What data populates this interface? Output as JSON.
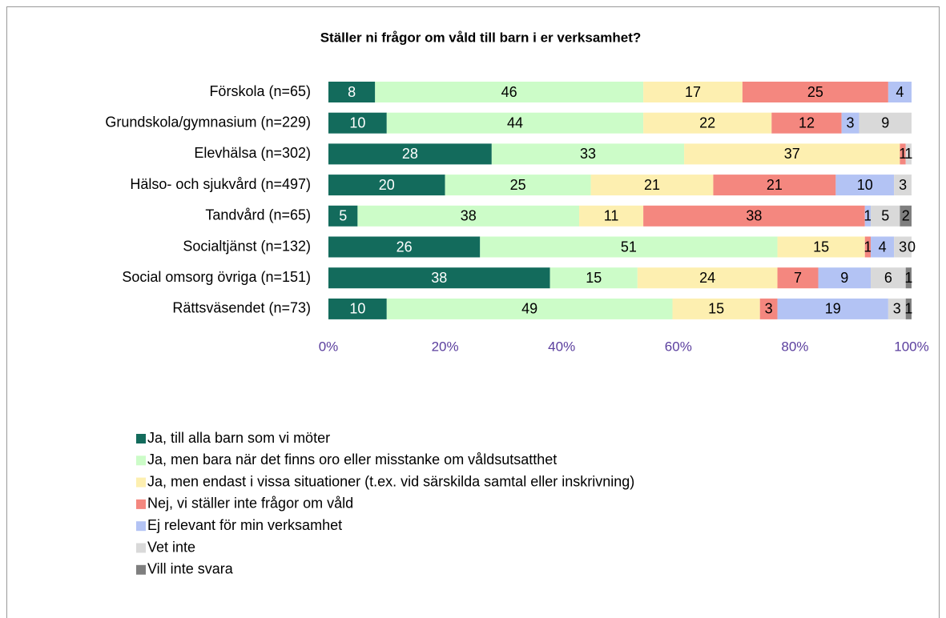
{
  "chart_data": {
    "type": "stacked_bar_horizontal",
    "title": "Ställer ni frågor om våld till barn i er verksamhet?",
    "categories": [
      "Förskola (n=65)",
      "Grundskola/gymnasium (n=229)",
      "Elevhälsa (n=302)",
      "Hälso- och sjukvård (n=497)",
      "Tandvård (n=65)",
      "Socialtjänst (n=132)",
      "Social omsorg övriga (n=151)",
      "Rättsväsendet (n=73)"
    ],
    "series": [
      {
        "name": "Ja, till alla barn som vi möter",
        "color": "#136b5c",
        "label_color": "#ffffff",
        "values": [
          8,
          10,
          28,
          20,
          5,
          26,
          38,
          10
        ]
      },
      {
        "name": "Ja, men bara när det finns oro eller misstanke om våldsutsatthet",
        "color": "#ccfcc8",
        "values": [
          46,
          44,
          33,
          25,
          38,
          51,
          15,
          49
        ]
      },
      {
        "name": "Ja, men endast i vissa situationer (t.ex. vid särskilda samtal eller inskrivning)",
        "color": "#fdefb0",
        "values": [
          17,
          22,
          37,
          21,
          11,
          15,
          24,
          15
        ]
      },
      {
        "name": "Nej, vi ställer inte frågor om våld",
        "color": "#f4877f",
        "values": [
          25,
          12,
          1,
          21,
          38,
          1,
          7,
          3
        ]
      },
      {
        "name": "Ej relevant för min verksamhet",
        "color": "#b3c3f4",
        "values": [
          4,
          3,
          null,
          10,
          1,
          4,
          9,
          19
        ]
      },
      {
        "name": "Vet inte",
        "color": "#d9d9d9",
        "values": [
          null,
          9,
          1,
          3,
          5,
          3,
          6,
          3
        ]
      },
      {
        "name": "Vill inte svara",
        "color": "#7f7f7f",
        "values": [
          null,
          null,
          null,
          null,
          2,
          0,
          1,
          1
        ]
      }
    ],
    "xlim": [
      0,
      100
    ],
    "xticks": [
      {
        "value": 0,
        "label": "0%"
      },
      {
        "value": 20,
        "label": "20%"
      },
      {
        "value": 40,
        "label": "40%"
      },
      {
        "value": 60,
        "label": "60%"
      },
      {
        "value": 80,
        "label": "80%"
      },
      {
        "value": 100,
        "label": "100%"
      }
    ],
    "tick_color": "#5b3f9e",
    "legend": "bottom"
  }
}
